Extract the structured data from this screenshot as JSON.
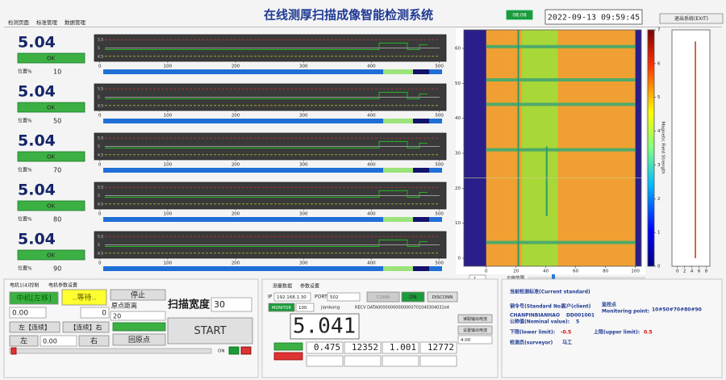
{
  "header": {
    "tabs": [
      "检测页面",
      "标准管理",
      "数据管理"
    ],
    "title": "在线测厚扫描成像智能检测系统",
    "status": "08:08",
    "datetime": "2022-09-13 09:59:45",
    "exit": "退出系统(EXIT)"
  },
  "panels": [
    {
      "value": 5.04,
      "status": "OK",
      "pos_label": "位置%",
      "pos": 10
    },
    {
      "value": 5.04,
      "status": "OK",
      "pos_label": "位置%",
      "pos": 50
    },
    {
      "value": 5.04,
      "status": "OK",
      "pos_label": "位置%",
      "pos": 70
    },
    {
      "value": 5.04,
      "status": "OK",
      "pos_label": "位置%",
      "pos": 80
    },
    {
      "value": 5.04,
      "status": "OK",
      "pos_label": "位置%",
      "pos": 90
    }
  ],
  "strip_chart": {
    "xlim": [
      -8,
      510
    ],
    "xticks": [
      0,
      100,
      200,
      300,
      400,
      500
    ],
    "ylim": [
      4.2,
      5.8
    ],
    "yticks": [
      5.5,
      5,
      4.5
    ]
  },
  "heatmap": {
    "xlim": [
      -15,
      104
    ],
    "xticks": [
      0,
      20,
      40,
      60,
      80,
      100
    ],
    "ylim": [
      -2.3,
      65.3
    ],
    "yticks": [
      0,
      10,
      20,
      30,
      40,
      50,
      60
    ],
    "colorbar_ticks": [
      0,
      1,
      2,
      3,
      4,
      5,
      6,
      7
    ],
    "colorbar_label": "Magnetic Field Strength",
    "range_label": "示值范围",
    "range_value": -1
  },
  "side_chart": {
    "xlim": [
      -1.5,
      9
    ],
    "xticks": [
      0,
      2,
      4,
      6,
      8
    ],
    "x": 5,
    "value": 62
  },
  "motor": {
    "tabs": [
      "电机1(4)控制",
      "电机参数设置"
    ],
    "move_left": "中机[左移]",
    "waiting": "..等待..",
    "stop": "停止",
    "pos_input": "0.00",
    "counter": 0,
    "origin_label": "原点距离",
    "origin_value": 20,
    "left_cont": "左【连续】",
    "right_cont": "【连续】右",
    "left": "左",
    "step_input": "0.00",
    "right": "右",
    "home": "回原点",
    "width_label": "扫描宽度",
    "width_value": 30,
    "start": "START",
    "on": "ON"
  },
  "comm": {
    "tabs": [
      "测量数据",
      "参数设置"
    ],
    "ip_label": "IP",
    "ip": "192.168.1.30",
    "port_label": "PORT",
    "port": 502,
    "conn": "CONN",
    "on": "ON",
    "disconn": "DISCONN",
    "monitor": "MONITOR",
    "monitor_value": 100,
    "jiankong": "jiankong",
    "recv_label": "RECV DATA",
    "recv": "00000000000000701040304031e4",
    "reading": 5.041,
    "values": [
      0.475,
      12352,
      1.001,
      12772
    ],
    "read_current": "读取输出电流",
    "set_current": "设置输出电流",
    "current": "4.00"
  },
  "standard": {
    "title": "当前检测标准(Current standard)",
    "no_label": "钢令号(Standard No)",
    "no": "CHANPINBIANHAO",
    "client_label": "客户(client)",
    "client": "DD001001",
    "mon_label": "监控点",
    "mon_label2": "Monitoring point:",
    "mon": "10#50#70#80#90",
    "nominal_label": "公称值(Nominal value):",
    "nominal": 5,
    "lower_label": "下限(lower limit):",
    "lower": -0.5,
    "upper_label": "上限(upper limit):",
    "upper": 0.5,
    "surveyor_label": "检测员(surveyor)",
    "surveyor": "马工"
  }
}
